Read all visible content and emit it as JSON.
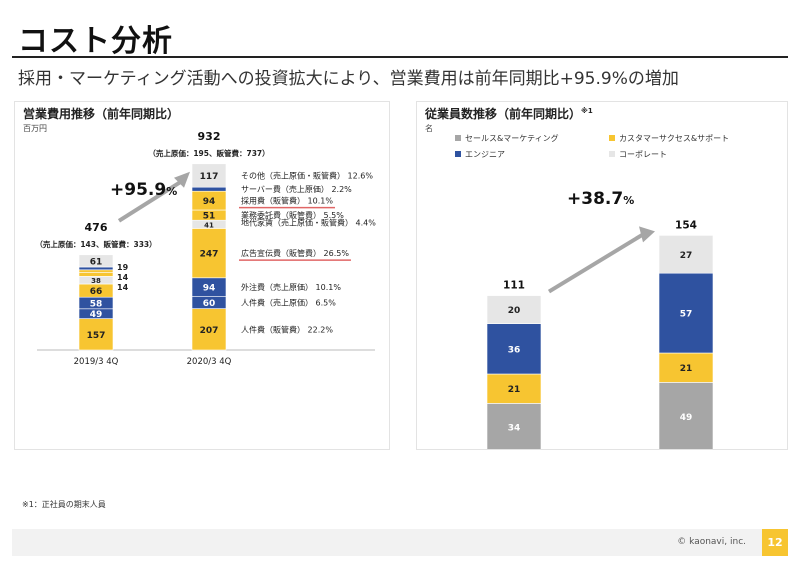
{
  "page": {
    "title": "コスト分析",
    "subtitle": "採用・マーケティング活動への投資拡大により、営業費用は前年同期比+95.9%の増加",
    "footnote": "※1：正社員の期末人員",
    "copyright": "© kaonavi, inc.",
    "page_number": "12"
  },
  "colors": {
    "gray": "#a6a6a6",
    "light_gray": "#e6e6e6",
    "blue": "#2f52a0",
    "yellow": "#f7c531",
    "arrow": "#a6a6a6",
    "underline": "#e06666"
  },
  "chart_data": [
    {
      "id": "operating-expenses",
      "type": "bar",
      "stacked": true,
      "title": "営業費用推移（前年同期比）",
      "unit": "百万円",
      "categories": [
        "2019/3 4Q",
        "2020/3 4Q"
      ],
      "totals": [
        476,
        932
      ],
      "total_notes": [
        "（売上原価：143、販管費：333）",
        "（売上原価：195、販管費：737）"
      ],
      "growth": "+95.9",
      "growth_unit": "%",
      "series": [
        {
          "name": "人件費（販管費）",
          "share": "22.2%",
          "color": "yellow",
          "values": [
            157,
            207
          ]
        },
        {
          "name": "人件費（売上原価）",
          "share": "6.5%",
          "color": "blue",
          "values": [
            49,
            60
          ]
        },
        {
          "name": "外注費（売上原価）",
          "share": "10.1%",
          "color": "blue",
          "values": [
            58,
            94
          ]
        },
        {
          "name": "広告宣伝費（販管費）",
          "share": "26.5%",
          "color": "yellow",
          "values": [
            66,
            247
          ],
          "highlight": true
        },
        {
          "name": "地代家賃（売上原価・販管費）",
          "share": "4.4%",
          "color": "light_gray",
          "values": [
            38,
            41
          ]
        },
        {
          "name": "業務委託費（販管費）",
          "share": "5.5%",
          "color": "yellow",
          "values": [
            19,
            51
          ]
        },
        {
          "name": "採用費（販管費）",
          "share": "10.1%",
          "color": "yellow",
          "values": [
            14,
            94
          ],
          "highlight": true
        },
        {
          "name": "サーバー費（売上原価）",
          "share": "2.2%",
          "color": "blue",
          "values": [
            14,
            20
          ]
        },
        {
          "name": "その他（売上原価・販管費）",
          "share": "12.6%",
          "color": "light_gray",
          "values": [
            61,
            117
          ]
        }
      ]
    },
    {
      "id": "headcount",
      "type": "bar",
      "stacked": true,
      "title": "従業員数推移（前年同期比）",
      "title_note": "※1",
      "unit": "名",
      "categories": [
        "2019/3 4Q",
        "2020/3 4Q"
      ],
      "totals": [
        111,
        154
      ],
      "growth": "+38.7",
      "growth_unit": "%",
      "series": [
        {
          "name": "セールス&マーケティング",
          "color": "gray",
          "values": [
            34,
            49
          ]
        },
        {
          "name": "カスタマーサクセス&サポート",
          "color": "yellow",
          "values": [
            21,
            21
          ]
        },
        {
          "name": "エンジニア",
          "color": "blue",
          "values": [
            36,
            57
          ]
        },
        {
          "name": "コーポレート",
          "color": "light_gray",
          "values": [
            20,
            27
          ]
        }
      ]
    }
  ]
}
